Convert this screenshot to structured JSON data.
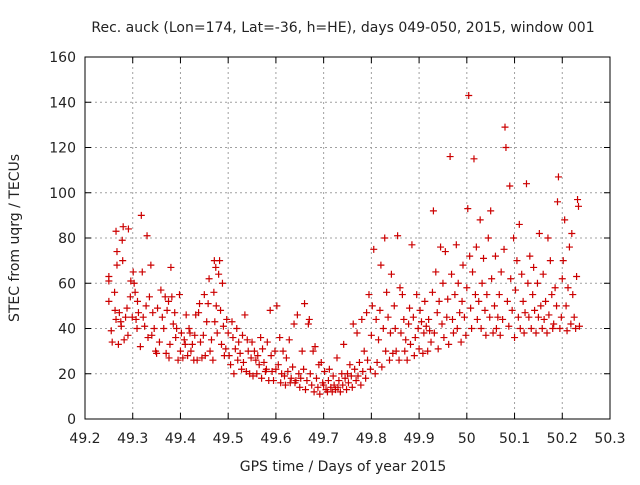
{
  "chart_data": {
    "type": "scatter",
    "title": "Rec. auck (Lon=174, Lat=-36, h=HE), days 049-050, 2015, window 001",
    "xlabel": "GPS time / Days of year 2015",
    "ylabel": "STEC from uqrg / TECUs",
    "xlim": [
      49.2,
      50.3
    ],
    "ylim": [
      0,
      160
    ],
    "xticks": [
      49.2,
      49.3,
      49.4,
      49.5,
      49.6,
      49.7,
      49.8,
      49.9,
      50.0,
      50.1,
      50.2,
      50.3
    ],
    "xtick_labels": [
      "49.2",
      "49.3",
      "49.4",
      "49.5",
      "49.6",
      "49.7",
      "49.8",
      "49.9",
      "50",
      "50.1",
      "50.2",
      "50.3"
    ],
    "yticks": [
      0,
      20,
      40,
      60,
      80,
      100,
      120,
      140,
      160
    ],
    "ytick_labels": [
      "0",
      "20",
      "40",
      "60",
      "80",
      "100",
      "120",
      "140",
      "160"
    ],
    "grid": true,
    "marker": "plus",
    "marker_color": "#cc0000",
    "points": [
      [
        49.25,
        63
      ],
      [
        49.25,
        61
      ],
      [
        49.25,
        52
      ],
      [
        49.255,
        39
      ],
      [
        49.257,
        34
      ],
      [
        49.262,
        56
      ],
      [
        49.263,
        48
      ],
      [
        49.265,
        44
      ],
      [
        49.265,
        83
      ],
      [
        49.267,
        74
      ],
      [
        49.267,
        68
      ],
      [
        49.27,
        33
      ],
      [
        49.272,
        47
      ],
      [
        49.275,
        43
      ],
      [
        49.276,
        41
      ],
      [
        49.278,
        79
      ],
      [
        49.279,
        70
      ],
      [
        49.28,
        85
      ],
      [
        49.282,
        35
      ],
      [
        49.285,
        45
      ],
      [
        49.288,
        49
      ],
      [
        49.29,
        37
      ],
      [
        49.291,
        84
      ],
      [
        49.295,
        54
      ],
      [
        49.296,
        61
      ],
      [
        49.299,
        45
      ],
      [
        49.301,
        65
      ],
      [
        49.303,
        60
      ],
      [
        49.305,
        56
      ],
      [
        49.307,
        44
      ],
      [
        49.309,
        40
      ],
      [
        49.31,
        52
      ],
      [
        49.312,
        47
      ],
      [
        49.316,
        32
      ],
      [
        49.318,
        90
      ],
      [
        49.32,
        65
      ],
      [
        49.322,
        45
      ],
      [
        49.325,
        41
      ],
      [
        49.328,
        50
      ],
      [
        49.33,
        81
      ],
      [
        49.332,
        36
      ],
      [
        49.335,
        54
      ],
      [
        49.338,
        68
      ],
      [
        49.34,
        37
      ],
      [
        49.342,
        47
      ],
      [
        49.345,
        40
      ],
      [
        49.348,
        30
      ],
      [
        49.35,
        29
      ],
      [
        49.352,
        49
      ],
      [
        49.356,
        34
      ],
      [
        49.359,
        57
      ],
      [
        49.362,
        45
      ],
      [
        49.365,
        40
      ],
      [
        49.368,
        54
      ],
      [
        49.37,
        29
      ],
      [
        49.372,
        48
      ],
      [
        49.375,
        52
      ],
      [
        49.376,
        27
      ],
      [
        49.378,
        33
      ],
      [
        49.38,
        67
      ],
      [
        49.382,
        54
      ],
      [
        49.385,
        42
      ],
      [
        49.388,
        47
      ],
      [
        49.39,
        36
      ],
      [
        49.392,
        40
      ],
      [
        49.395,
        26
      ],
      [
        49.398,
        55
      ],
      [
        49.4,
        30
      ],
      [
        49.402,
        38
      ],
      [
        49.405,
        27
      ],
      [
        49.408,
        35
      ],
      [
        49.41,
        33
      ],
      [
        49.412,
        46
      ],
      [
        49.415,
        28
      ],
      [
        49.418,
        40
      ],
      [
        49.42,
        38
      ],
      [
        49.422,
        30
      ],
      [
        49.425,
        33
      ],
      [
        49.428,
        26
      ],
      [
        49.43,
        37
      ],
      [
        49.432,
        46
      ],
      [
        49.435,
        26
      ],
      [
        49.438,
        47
      ],
      [
        49.44,
        51
      ],
      [
        49.442,
        34
      ],
      [
        49.445,
        27
      ],
      [
        49.448,
        37
      ],
      [
        49.45,
        55
      ],
      [
        49.452,
        28
      ],
      [
        49.455,
        43
      ],
      [
        49.458,
        51
      ],
      [
        49.46,
        62
      ],
      [
        49.462,
        30
      ],
      [
        49.465,
        35
      ],
      [
        49.468,
        26
      ],
      [
        49.47,
        56
      ],
      [
        49.471,
        70
      ],
      [
        49.472,
        43
      ],
      [
        49.474,
        67
      ],
      [
        49.475,
        50
      ],
      [
        49.477,
        38
      ],
      [
        49.48,
        64
      ],
      [
        49.482,
        70
      ],
      [
        49.484,
        48
      ],
      [
        49.486,
        33
      ],
      [
        49.488,
        60
      ],
      [
        49.49,
        41
      ],
      [
        49.492,
        28
      ],
      [
        49.495,
        31
      ],
      [
        49.497,
        44
      ],
      [
        49.5,
        38
      ],
      [
        49.502,
        28
      ],
      [
        49.505,
        24
      ],
      [
        49.508,
        43
      ],
      [
        49.51,
        36
      ],
      [
        49.512,
        20
      ],
      [
        49.515,
        31
      ],
      [
        49.518,
        40
      ],
      [
        49.52,
        26
      ],
      [
        49.522,
        34
      ],
      [
        49.525,
        29
      ],
      [
        49.528,
        22
      ],
      [
        49.53,
        37
      ],
      [
        49.532,
        25
      ],
      [
        49.535,
        46
      ],
      [
        49.538,
        21
      ],
      [
        49.54,
        35
      ],
      [
        49.542,
        30
      ],
      [
        49.545,
        20
      ],
      [
        49.548,
        27
      ],
      [
        49.55,
        34
      ],
      [
        49.552,
        19
      ],
      [
        49.555,
        30
      ],
      [
        49.558,
        26
      ],
      [
        49.56,
        20
      ],
      [
        49.562,
        28
      ],
      [
        49.565,
        24
      ],
      [
        49.568,
        36
      ],
      [
        49.57,
        18
      ],
      [
        49.572,
        31
      ],
      [
        49.575,
        25
      ],
      [
        49.578,
        21
      ],
      [
        49.58,
        22
      ],
      [
        49.582,
        34
      ],
      [
        49.585,
        17
      ],
      [
        49.588,
        48
      ],
      [
        49.59,
        28
      ],
      [
        49.592,
        21
      ],
      [
        49.595,
        17
      ],
      [
        49.598,
        30
      ],
      [
        49.6,
        22
      ],
      [
        49.602,
        50
      ],
      [
        49.605,
        24
      ],
      [
        49.608,
        36
      ],
      [
        49.61,
        16
      ],
      [
        49.612,
        20
      ],
      [
        49.615,
        30
      ],
      [
        49.618,
        19
      ],
      [
        49.62,
        15
      ],
      [
        49.622,
        27
      ],
      [
        49.625,
        21
      ],
      [
        49.628,
        35
      ],
      [
        49.63,
        16
      ],
      [
        49.632,
        18
      ],
      [
        49.635,
        23
      ],
      [
        49.638,
        42
      ],
      [
        49.64,
        16
      ],
      [
        49.642,
        17
      ],
      [
        49.645,
        46
      ],
      [
        49.648,
        20
      ],
      [
        49.65,
        14
      ],
      [
        49.652,
        18
      ],
      [
        49.655,
        30
      ],
      [
        49.658,
        22
      ],
      [
        49.66,
        51
      ],
      [
        49.662,
        13
      ],
      [
        49.665,
        17
      ],
      [
        49.668,
        42
      ],
      [
        49.67,
        44
      ],
      [
        49.672,
        20
      ],
      [
        49.675,
        15
      ],
      [
        49.678,
        30
      ],
      [
        49.68,
        12
      ],
      [
        49.682,
        32
      ],
      [
        49.685,
        18
      ],
      [
        49.688,
        14
      ],
      [
        49.69,
        24
      ],
      [
        49.692,
        11
      ],
      [
        49.695,
        25
      ],
      [
        49.698,
        16
      ],
      [
        49.7,
        15
      ],
      [
        49.702,
        21
      ],
      [
        49.705,
        13
      ],
      [
        49.708,
        12
      ],
      [
        49.71,
        17
      ],
      [
        49.712,
        22
      ],
      [
        49.715,
        14
      ],
      [
        49.718,
        12
      ],
      [
        49.72,
        19
      ],
      [
        49.722,
        15
      ],
      [
        49.725,
        13
      ],
      [
        49.728,
        27
      ],
      [
        49.73,
        14
      ],
      [
        49.732,
        17
      ],
      [
        49.735,
        12
      ],
      [
        49.738,
        20
      ],
      [
        49.74,
        15
      ],
      [
        49.742,
        33
      ],
      [
        49.745,
        18
      ],
      [
        49.748,
        13
      ],
      [
        49.75,
        20
      ],
      [
        49.752,
        16
      ],
      [
        49.755,
        24
      ],
      [
        49.758,
        19
      ],
      [
        49.76,
        14
      ],
      [
        49.762,
        42
      ],
      [
        49.765,
        22
      ],
      [
        49.768,
        17
      ],
      [
        49.77,
        38
      ],
      [
        49.772,
        19
      ],
      [
        49.775,
        25
      ],
      [
        49.778,
        15
      ],
      [
        49.78,
        44
      ],
      [
        49.782,
        21
      ],
      [
        49.785,
        30
      ],
      [
        49.788,
        18
      ],
      [
        49.79,
        47
      ],
      [
        49.792,
        26
      ],
      [
        49.795,
        55
      ],
      [
        49.798,
        22
      ],
      [
        49.8,
        37
      ],
      [
        49.802,
        50
      ],
      [
        49.805,
        75
      ],
      [
        49.808,
        20
      ],
      [
        49.81,
        44
      ],
      [
        49.812,
        25
      ],
      [
        49.815,
        35
      ],
      [
        49.818,
        48
      ],
      [
        49.82,
        68
      ],
      [
        49.822,
        23
      ],
      [
        49.825,
        40
      ],
      [
        49.828,
        80
      ],
      [
        49.83,
        30
      ],
      [
        49.832,
        56
      ],
      [
        49.835,
        45
      ],
      [
        49.838,
        26
      ],
      [
        49.84,
        38
      ],
      [
        49.842,
        64
      ],
      [
        49.845,
        29
      ],
      [
        49.848,
        50
      ],
      [
        49.85,
        40
      ],
      [
        49.852,
        30
      ],
      [
        49.855,
        81
      ],
      [
        49.858,
        26
      ],
      [
        49.86,
        58
      ],
      [
        49.862,
        38
      ],
      [
        49.865,
        55
      ],
      [
        49.868,
        44
      ],
      [
        49.87,
        30
      ],
      [
        49.872,
        35
      ],
      [
        49.875,
        26
      ],
      [
        49.878,
        42
      ],
      [
        49.88,
        49
      ],
      [
        49.882,
        33
      ],
      [
        49.885,
        77
      ],
      [
        49.888,
        45
      ],
      [
        49.89,
        28
      ],
      [
        49.892,
        36
      ],
      [
        49.895,
        55
      ],
      [
        49.898,
        40
      ],
      [
        49.9,
        31
      ],
      [
        49.902,
        48
      ],
      [
        49.905,
        43
      ],
      [
        49.908,
        29
      ],
      [
        49.91,
        38
      ],
      [
        49.912,
        52
      ],
      [
        49.915,
        41
      ],
      [
        49.918,
        30
      ],
      [
        49.92,
        44
      ],
      [
        49.922,
        39
      ],
      [
        49.925,
        34
      ],
      [
        49.928,
        56
      ],
      [
        49.93,
        92
      ],
      [
        49.932,
        38
      ],
      [
        49.935,
        65
      ],
      [
        49.938,
        47
      ],
      [
        49.94,
        31
      ],
      [
        49.942,
        52
      ],
      [
        49.945,
        76
      ],
      [
        49.948,
        42
      ],
      [
        49.95,
        60
      ],
      [
        49.952,
        36
      ],
      [
        49.955,
        74
      ],
      [
        49.958,
        45
      ],
      [
        49.96,
        53
      ],
      [
        49.962,
        33
      ],
      [
        49.965,
        116
      ],
      [
        49.968,
        64
      ],
      [
        49.97,
        44
      ],
      [
        49.972,
        38
      ],
      [
        49.975,
        55
      ],
      [
        49.978,
        77
      ],
      [
        49.98,
        40
      ],
      [
        49.982,
        60
      ],
      [
        49.985,
        47
      ],
      [
        49.988,
        34
      ],
      [
        49.99,
        52
      ],
      [
        49.992,
        68
      ],
      [
        49.995,
        45
      ],
      [
        49.998,
        37
      ],
      [
        50.0,
        58
      ],
      [
        50.002,
        93
      ],
      [
        50.004,
        143
      ],
      [
        50.006,
        72
      ],
      [
        50.008,
        49
      ],
      [
        50.01,
        40
      ],
      [
        50.012,
        65
      ],
      [
        50.015,
        115
      ],
      [
        50.018,
        55
      ],
      [
        50.02,
        76
      ],
      [
        50.022,
        44
      ],
      [
        50.025,
        52
      ],
      [
        50.028,
        88
      ],
      [
        50.03,
        40
      ],
      [
        50.032,
        60
      ],
      [
        50.035,
        71
      ],
      [
        50.038,
        48
      ],
      [
        50.04,
        37
      ],
      [
        50.042,
        55
      ],
      [
        50.045,
        80
      ],
      [
        50.048,
        45
      ],
      [
        50.05,
        92
      ],
      [
        50.052,
        62
      ],
      [
        50.055,
        38
      ],
      [
        50.058,
        50
      ],
      [
        50.06,
        72
      ],
      [
        50.062,
        40
      ],
      [
        50.065,
        45
      ],
      [
        50.068,
        55
      ],
      [
        50.07,
        37
      ],
      [
        50.072,
        65
      ],
      [
        50.075,
        44
      ],
      [
        50.078,
        75
      ],
      [
        50.08,
        129
      ],
      [
        50.082,
        120
      ],
      [
        50.085,
        52
      ],
      [
        50.088,
        41
      ],
      [
        50.09,
        103
      ],
      [
        50.092,
        62
      ],
      [
        50.095,
        48
      ],
      [
        50.098,
        80
      ],
      [
        50.1,
        36
      ],
      [
        50.102,
        57
      ],
      [
        50.105,
        70
      ],
      [
        50.108,
        45
      ],
      [
        50.11,
        86
      ],
      [
        50.112,
        40
      ],
      [
        50.115,
        64
      ],
      [
        50.118,
        52
      ],
      [
        50.12,
        38
      ],
      [
        50.122,
        47
      ],
      [
        50.125,
        104
      ],
      [
        50.128,
        60
      ],
      [
        50.13,
        45
      ],
      [
        50.132,
        72
      ],
      [
        50.135,
        40
      ],
      [
        50.138,
        55
      ],
      [
        50.14,
        67
      ],
      [
        50.142,
        48
      ],
      [
        50.145,
        38
      ],
      [
        50.148,
        60
      ],
      [
        50.15,
        45
      ],
      [
        50.152,
        82
      ],
      [
        50.155,
        50
      ],
      [
        50.158,
        40
      ],
      [
        50.16,
        64
      ],
      [
        50.162,
        44
      ],
      [
        50.165,
        52
      ],
      [
        50.168,
        38
      ],
      [
        50.17,
        80
      ],
      [
        50.172,
        46
      ],
      [
        50.175,
        70
      ],
      [
        50.178,
        55
      ],
      [
        50.18,
        40
      ],
      [
        50.182,
        42
      ],
      [
        50.185,
        58
      ],
      [
        50.188,
        50
      ],
      [
        50.19,
        96
      ],
      [
        50.192,
        107
      ],
      [
        50.195,
        40
      ],
      [
        50.198,
        45
      ],
      [
        50.2,
        62
      ],
      [
        50.202,
        70
      ],
      [
        50.205,
        88
      ],
      [
        50.208,
        50
      ],
      [
        50.21,
        39
      ],
      [
        50.212,
        58
      ],
      [
        50.215,
        76
      ],
      [
        50.218,
        42
      ],
      [
        50.22,
        82
      ],
      [
        50.222,
        55
      ],
      [
        50.225,
        45
      ],
      [
        50.228,
        40
      ],
      [
        50.23,
        63
      ],
      [
        50.232,
        97
      ],
      [
        50.234,
        94
      ],
      [
        50.236,
        41
      ]
    ]
  }
}
